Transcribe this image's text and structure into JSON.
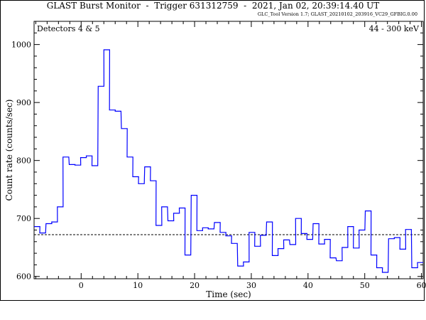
{
  "chart_data": {
    "type": "line",
    "step": true,
    "title": "GLAST Burst Monitor  -  Trigger 631312759  -  2021, Jan 02, 20:39:14.40 UT",
    "subtitle": "GLC_Tool Version 1.7; GLAST_20210102_203916_VC29_GFBIG.0.00",
    "xlabel": "Time (sec)",
    "ylabel": "Count rate (counts/sec)",
    "annotation_left": "Detectors 4 & 5",
    "annotation_right": "44 - 300 keV",
    "xlim": [
      -8.3,
      60.3
    ],
    "ylim": [
      596,
      1040
    ],
    "xticks": [
      0,
      10,
      20,
      30,
      40,
      50,
      60
    ],
    "yticks": [
      600,
      700,
      800,
      900,
      1000
    ],
    "background_level": 672,
    "series": [
      {
        "color": "#0000ff",
        "bin_width": 1.024,
        "x": [
          -8.3,
          -7.3,
          -6.2,
          -5.2,
          -4.2,
          -3.2,
          -2.1,
          -1.1,
          -0.1,
          0.9,
          1.9,
          3.0,
          4.0,
          5.0,
          6.0,
          7.1,
          8.1,
          9.1,
          10.1,
          11.2,
          12.2,
          13.2,
          14.2,
          15.3,
          16.3,
          17.3,
          18.3,
          19.4,
          20.4,
          21.4,
          22.4,
          23.5,
          24.5,
          25.5,
          26.5,
          27.6,
          28.6,
          29.6,
          30.6,
          31.6,
          32.7,
          33.7,
          34.7,
          35.7,
          36.8,
          37.8,
          38.8,
          39.8,
          40.9,
          41.9,
          42.9,
          43.9,
          45.0,
          46.0,
          47.0,
          48.0,
          49.0,
          50.1,
          51.1,
          52.1,
          53.1,
          54.2,
          55.2,
          56.2,
          57.2,
          58.3,
          59.3
        ],
        "y": [
          686,
          675,
          691,
          694,
          720,
          806,
          793,
          792,
          805,
          808,
          791,
          928,
          991,
          887,
          885,
          855,
          806,
          772,
          760,
          789,
          765,
          688,
          720,
          696,
          709,
          718,
          637,
          740,
          679,
          684,
          682,
          693,
          676,
          670,
          657,
          618,
          625,
          676,
          652,
          671,
          694,
          636,
          648,
          663,
          655,
          700,
          674,
          664,
          691,
          656,
          664,
          632,
          627,
          650,
          686,
          649,
          680,
          713,
          637,
          615,
          607,
          665,
          667,
          647,
          681,
          615,
          624
        ]
      }
    ]
  }
}
